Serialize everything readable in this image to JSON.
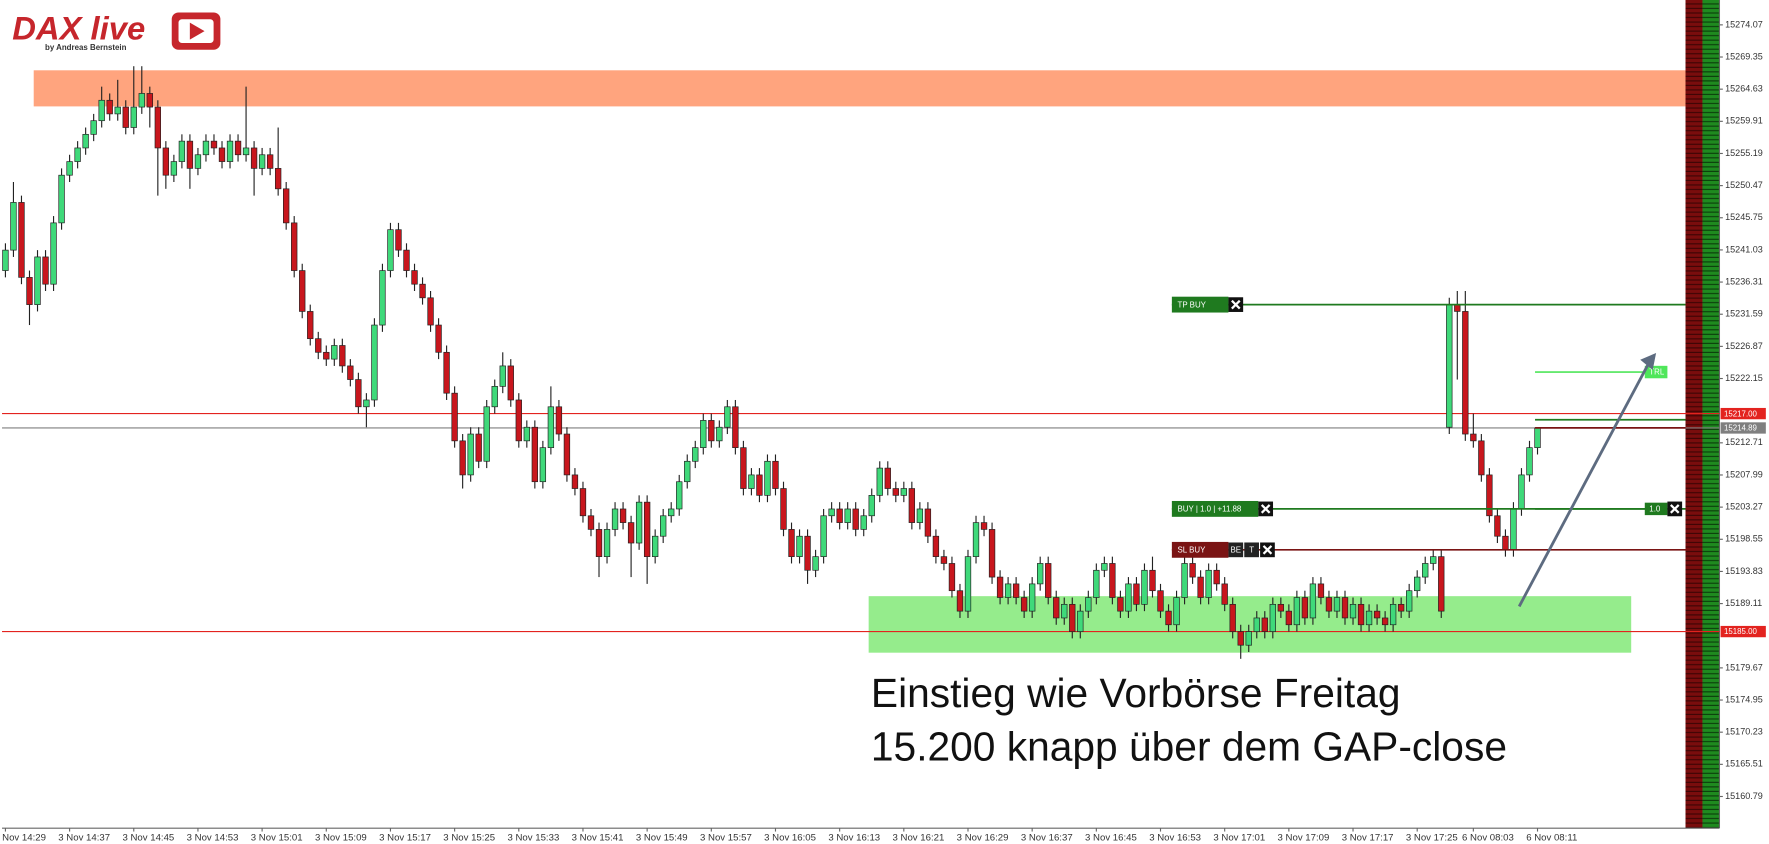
{
  "logo": {
    "title": "DAX live",
    "subtitle": "by Andreas Bernstein"
  },
  "chart_data": {
    "type": "candlestick",
    "categories": [
      "3 Nov 14:29",
      null,
      null,
      null,
      null,
      null,
      null,
      null,
      "3 Nov 14:37",
      null,
      null,
      null,
      null,
      null,
      null,
      null,
      "3 Nov 14:45",
      null,
      null,
      null,
      null,
      null,
      null,
      null,
      "3 Nov 14:53",
      null,
      null,
      null,
      null,
      null,
      null,
      null,
      "3 Nov 15:01",
      null,
      null,
      null,
      null,
      null,
      null,
      null,
      "3 Nov 15:09",
      null,
      null,
      null,
      null,
      null,
      null,
      null,
      "3 Nov 15:17",
      null,
      null,
      null,
      null,
      null,
      null,
      null,
      "3 Nov 15:25",
      null,
      null,
      null,
      null,
      null,
      null,
      null,
      "3 Nov 15:33",
      null,
      null,
      null,
      null,
      null,
      null,
      null,
      "3 Nov 15:41",
      null,
      null,
      null,
      null,
      null,
      null,
      null,
      "3 Nov 15:49",
      null,
      null,
      null,
      null,
      null,
      null,
      null,
      "3 Nov 15:57",
      null,
      null,
      null,
      null,
      null,
      null,
      null,
      "3 Nov 16:05",
      null,
      null,
      null,
      null,
      null,
      null,
      null,
      "3 Nov 16:13",
      null,
      null,
      null,
      null,
      null,
      null,
      null,
      "3 Nov 16:21",
      null,
      null,
      null,
      null,
      null,
      null,
      null,
      "3 Nov 16:29",
      null,
      null,
      null,
      null,
      null,
      null,
      null,
      "3 Nov 16:37",
      null,
      null,
      null,
      null,
      null,
      null,
      null,
      "3 Nov 16:45",
      null,
      null,
      null,
      null,
      null,
      null,
      null,
      "3 Nov 16:53",
      null,
      null,
      null,
      null,
      null,
      null,
      null,
      "3 Nov 17:01",
      null,
      null,
      null,
      null,
      null,
      null,
      null,
      "3 Nov 17:09",
      null,
      null,
      null,
      null,
      null,
      null,
      null,
      "3 Nov 17:17",
      null,
      null,
      null,
      null,
      null,
      null,
      null,
      "3 Nov 17:25",
      null,
      null,
      null,
      null,
      null,
      null,
      "6 Nov 08:03",
      null,
      null,
      null,
      null,
      null,
      null,
      null,
      "6 Nov 08:11"
    ],
    "open": [
      15238,
      15241,
      15248,
      15237,
      15233,
      15240,
      15236,
      15245,
      15252,
      15254,
      15256,
      15258,
      15260,
      15263,
      15261,
      15262,
      15259,
      15262,
      15264,
      15262,
      15256,
      15252,
      15254,
      15257,
      15253,
      15255,
      15257,
      15256,
      15254,
      15257,
      15255,
      15256,
      15253,
      15255,
      15253,
      15250,
      15245,
      15238,
      15232,
      15228,
      15226,
      15225,
      15227,
      15224,
      15222,
      15218,
      15219,
      15230,
      15238,
      15244,
      15241,
      15238,
      15236,
      15234,
      15230,
      15226,
      15220,
      15213,
      15208,
      15214,
      15210,
      15218,
      15221,
      15224,
      15219,
      15213,
      15215,
      15207,
      15212,
      15218,
      15214,
      15208,
      15206,
      15202,
      15200,
      15196,
      15200,
      15203,
      15201,
      15198,
      15204,
      15196,
      15199,
      15202,
      15203,
      15207,
      15210,
      15212,
      15216,
      15213,
      15215,
      15218,
      15212,
      15206,
      15208,
      15205,
      15210,
      15206,
      15200,
      15196,
      15199,
      15194,
      15196,
      15202,
      15203,
      15201,
      15203,
      15200,
      15202,
      15205,
      15209,
      15206,
      15205,
      15206,
      15201,
      15203,
      15199,
      15196,
      15195,
      15191,
      15188,
      15196,
      15201,
      15200,
      15193,
      15190,
      15192,
      15190,
      15188,
      15192,
      15195,
      15190,
      15187,
      15189,
      15185,
      15188,
      15190,
      15194,
      15195,
      15190,
      15188,
      15192,
      15189,
      15194,
      15191,
      15188,
      15186,
      15190,
      15195,
      15193,
      15190,
      15194,
      15192,
      15189,
      15185,
      15183,
      15185,
      15187,
      15185,
      15189,
      15188,
      15186,
      15190,
      15187,
      15192,
      15190,
      15188,
      15190,
      15187,
      15189,
      15186,
      15188,
      15187,
      15186,
      15189,
      15188,
      15191,
      15193,
      15195,
      15196,
      15215,
      15233,
      15232,
      15214,
      15213,
      15208,
      15202,
      15199,
      15197,
      15203,
      15208,
      15212
    ],
    "high": [
      15242,
      15251,
      15249,
      15238,
      15241,
      15241,
      15246,
      15253,
      15255,
      15257,
      15259,
      15261,
      15265,
      15264,
      15266,
      15263,
      15268,
      15268,
      15265,
      15263,
      15257,
      15255,
      15258,
      15258,
      15256,
      15258,
      15258,
      15257,
      15258,
      15258,
      15265,
      15257,
      15256,
      15256,
      15259,
      15251,
      15246,
      15239,
      15233,
      15229,
      15227,
      15228,
      15228,
      15225,
      15223,
      15220,
      15231,
      15239,
      15245,
      15245,
      15242,
      15239,
      15237,
      15235,
      15231,
      15227,
      15221,
      15214,
      15215,
      15215,
      15219,
      15222,
      15226,
      15225,
      15220,
      15216,
      15216,
      15213,
      15221,
      15219,
      15215,
      15209,
      15207,
      15203,
      15201,
      15201,
      15204,
      15204,
      15202,
      15205,
      15205,
      15200,
      15203,
      15204,
      15208,
      15211,
      15213,
      15217,
      15217,
      15216,
      15219,
      15219,
      15213,
      15209,
      15209,
      15211,
      15211,
      15207,
      15201,
      15200,
      15200,
      15197,
      15203,
      15204,
      15204,
      15204,
      15204,
      15203,
      15206,
      15210,
      15210,
      15207,
      15207,
      15207,
      15204,
      15204,
      15200,
      15197,
      15196,
      15192,
      15197,
      15202,
      15202,
      15201,
      15194,
      15193,
      15193,
      15191,
      15193,
      15196,
      15196,
      15191,
      15190,
      15190,
      15189,
      15191,
      15195,
      15196,
      15196,
      15191,
      15193,
      15193,
      15195,
      15196,
      15192,
      15189,
      15191,
      15196,
      15196,
      15194,
      15195,
      15195,
      15193,
      15190,
      15186,
      15186,
      15188,
      15188,
      15190,
      15190,
      15189,
      15191,
      15191,
      15193,
      15193,
      15191,
      15191,
      15191,
      15190,
      15190,
      15189,
      15189,
      15188,
      15190,
      15190,
      15192,
      15194,
      15196,
      15197,
      15197,
      15234,
      15235,
      15235,
      15217,
      15214,
      15209,
      15203,
      15200,
      15204,
      15209,
      15213,
      15215
    ],
    "low": [
      15237,
      15240,
      15236,
      15230,
      15232,
      15235,
      15235,
      15244,
      15251,
      15253,
      15255,
      15257,
      15259,
      15260,
      15260,
      15258,
      15258,
      15261,
      15259,
      15249,
      15250,
      15251,
      15253,
      15250,
      15252,
      15254,
      15255,
      15253,
      15253,
      15254,
      15254,
      15249,
      15252,
      15252,
      15249,
      15244,
      15237,
      15231,
      15227,
      15225,
      15224,
      15224,
      15223,
      15221,
      15217,
      15215,
      15218,
      15229,
      15237,
      15240,
      15237,
      15235,
      15233,
      15229,
      15225,
      15219,
      15212,
      15206,
      15207,
      15209,
      15209,
      15217,
      15220,
      15218,
      15212,
      15212,
      15206,
      15206,
      15211,
      15213,
      15207,
      15205,
      15201,
      15199,
      15193,
      15195,
      15199,
      15200,
      15193,
      15197,
      15192,
      15195,
      15198,
      15201,
      15202,
      15206,
      15209,
      15211,
      15212,
      15212,
      15214,
      15211,
      15205,
      15205,
      15204,
      15204,
      15205,
      15199,
      15195,
      15195,
      15192,
      15193,
      15195,
      15201,
      15200,
      15200,
      15199,
      15199,
      15201,
      15204,
      15205,
      15204,
      15204,
      15200,
      15200,
      15198,
      15195,
      15194,
      15190,
      15187,
      15187,
      15195,
      15199,
      15192,
      15189,
      15189,
      15189,
      15187,
      15187,
      15191,
      15189,
      15186,
      15186,
      15184,
      15184,
      15187,
      15189,
      15193,
      15189,
      15187,
      15187,
      15188,
      15188,
      15190,
      15187,
      15185,
      15185,
      15189,
      15192,
      15189,
      15189,
      15191,
      15188,
      15184,
      15181,
      15182,
      15184,
      15184,
      15184,
      15187,
      15185,
      15185,
      15186,
      15186,
      15189,
      15187,
      15187,
      15186,
      15186,
      15185,
      15185,
      15186,
      15185,
      15185,
      15187,
      15187,
      15190,
      15192,
      15194,
      15187,
      15214,
      15222,
      15213,
      15212,
      15207,
      15201,
      15198,
      15196,
      15196,
      15202,
      15207,
      15211
    ],
    "close": [
      15241,
      15248,
      15237,
      15233,
      15240,
      15236,
      15245,
      15252,
      15254,
      15256,
      15258,
      15260,
      15263,
      15261,
      15262,
      15259,
      15262,
      15264,
      15262,
      15256,
      15252,
      15254,
      15257,
      15253,
      15255,
      15257,
      15256,
      15254,
      15257,
      15255,
      15256,
      15253,
      15255,
      15253,
      15250,
      15245,
      15238,
      15232,
      15228,
      15226,
      15225,
      15227,
      15224,
      15222,
      15218,
      15219,
      15230,
      15238,
      15244,
      15241,
      15238,
      15236,
      15234,
      15230,
      15226,
      15220,
      15213,
      15208,
      15214,
      15210,
      15218,
      15221,
      15224,
      15219,
      15213,
      15215,
      15207,
      15212,
      15218,
      15214,
      15208,
      15206,
      15202,
      15200,
      15196,
      15200,
      15203,
      15201,
      15198,
      15204,
      15196,
      15199,
      15202,
      15203,
      15207,
      15210,
      15212,
      15216,
      15213,
      15215,
      15218,
      15212,
      15206,
      15208,
      15205,
      15210,
      15206,
      15200,
      15196,
      15199,
      15194,
      15196,
      15202,
      15203,
      15201,
      15203,
      15200,
      15202,
      15205,
      15209,
      15206,
      15205,
      15206,
      15201,
      15203,
      15199,
      15196,
      15195,
      15191,
      15188,
      15196,
      15201,
      15200,
      15193,
      15190,
      15192,
      15190,
      15188,
      15192,
      15195,
      15190,
      15187,
      15189,
      15185,
      15188,
      15190,
      15194,
      15195,
      15190,
      15188,
      15192,
      15189,
      15194,
      15191,
      15188,
      15186,
      15190,
      15195,
      15193,
      15190,
      15194,
      15192,
      15189,
      15185,
      15183,
      15185,
      15187,
      15185,
      15189,
      15188,
      15186,
      15190,
      15187,
      15192,
      15190,
      15188,
      15190,
      15187,
      15189,
      15186,
      15188,
      15187,
      15186,
      15189,
      15188,
      15191,
      15193,
      15195,
      15196,
      15188,
      15233,
      15232,
      15214,
      15213,
      15208,
      15202,
      15199,
      15197,
      15203,
      15208,
      15212,
      15214.89
    ],
    "colors": {
      "up": "#3fd97a",
      "down": "#c8161d"
    },
    "ylim": [
      15156.14,
      15277.72
    ],
    "yticks": [
      15274.07,
      15269.35,
      15264.63,
      15259.91,
      15255.19,
      15250.47,
      15245.75,
      15241.03,
      15236.31,
      15231.59,
      15226.87,
      15222.15,
      15212.71,
      15207.99,
      15203.27,
      15198.55,
      15193.83,
      15189.11,
      15179.67,
      15174.95,
      15170.23,
      15165.51,
      15160.79
    ],
    "price_labels": [
      {
        "value": 15217,
        "label": "15217.00",
        "color": "#e3231f"
      },
      {
        "value": 15214.89,
        "label": "15214.89",
        "color": "#7f7f7f"
      },
      {
        "value": 15185,
        "label": "15185.00",
        "color": "#e3231f"
      }
    ],
    "zones": [
      {
        "from": 15262.1,
        "to": 15267.4,
        "color": "#ffa47e"
      },
      {
        "from": 15181.9,
        "to": 15190.2,
        "color": "#95ec8c"
      }
    ],
    "orders": [
      {
        "label": "TP BUY",
        "price": 15233,
        "color": "#1f7a1f",
        "buttons": []
      },
      {
        "label": "BUY | 1.0 | +11.88",
        "price": 15203.01,
        "color": "#1f7a1f",
        "buttons": []
      },
      {
        "label": "SL BUY",
        "price": 15197,
        "color": "#7a1414",
        "buttons": [
          "BE",
          "T"
        ]
      }
    ],
    "short_lines": [
      {
        "price": 15216.1,
        "color": "#1f7a1f"
      },
      {
        "price": 15214.9,
        "color": "#7a1414"
      }
    ],
    "right_tags": [
      {
        "label": "TRL",
        "price": 15223.1,
        "color": "#4fe65a"
      },
      {
        "label": "1.0",
        "price": 15203.01,
        "color": "#1f7a1f"
      }
    ],
    "annotation": [
      "Einstieg wie Vorbörse Freitag",
      "15.200 knapp über dem GAP-close"
    ]
  }
}
